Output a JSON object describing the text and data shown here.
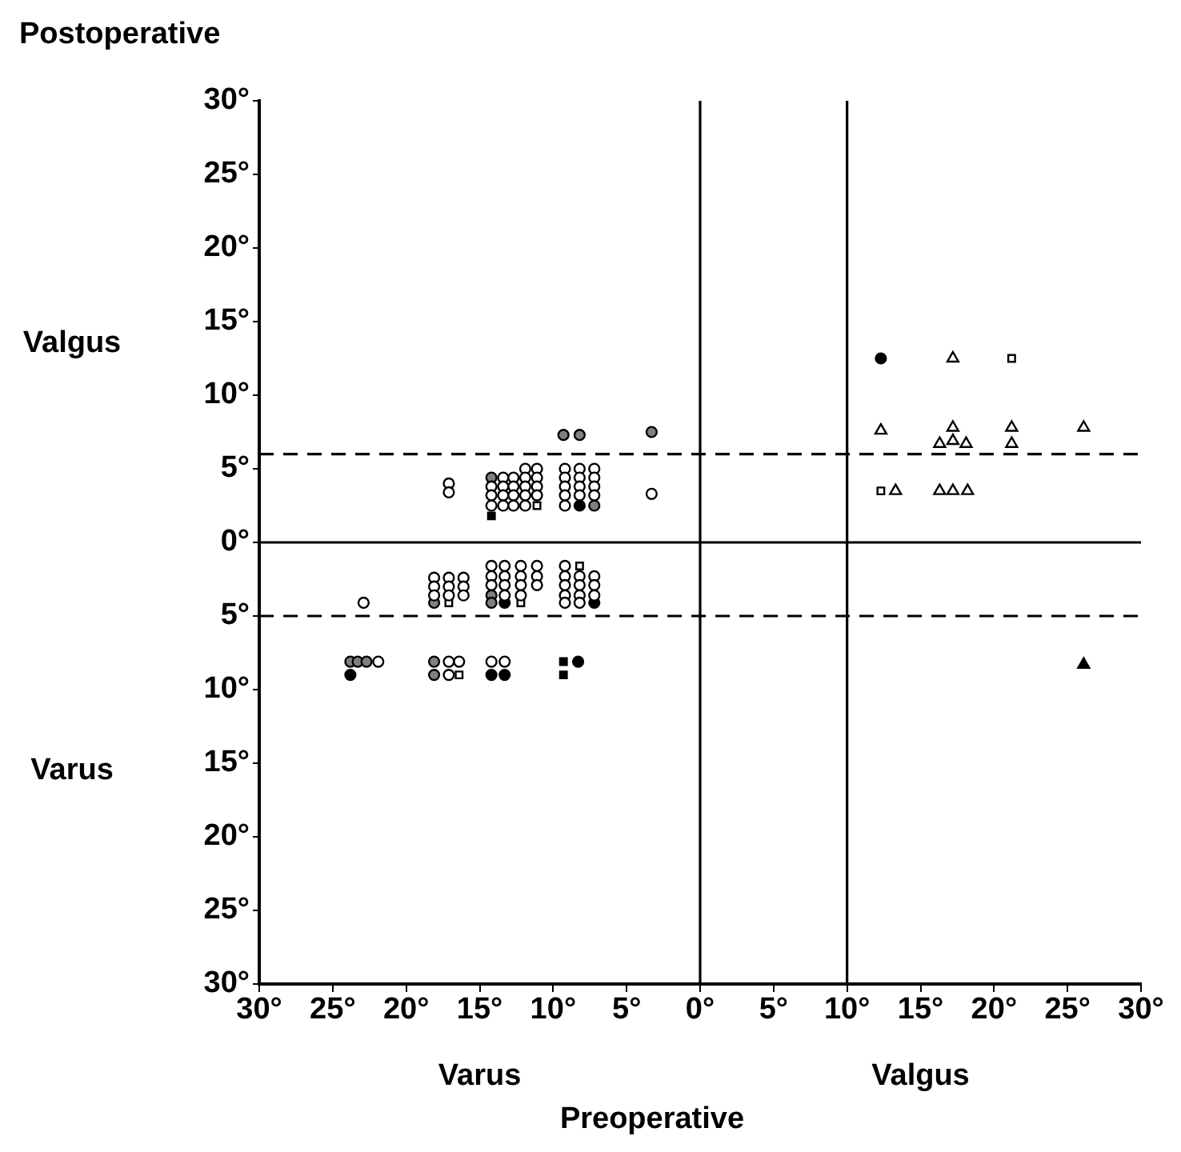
{
  "chart_data": {
    "type": "scatter",
    "xlabel": "Preoperative",
    "ylabel": "Postoperative",
    "grid": false,
    "legend": false,
    "annotations": [
      "Valgus",
      "Varus",
      "Varus",
      "Valgus"
    ],
    "xlim": [
      -30,
      30
    ],
    "ylim": [
      -30,
      30
    ],
    "xticks": [
      {
        "value": -30,
        "label": "30°"
      },
      {
        "value": -25,
        "label": "25°"
      },
      {
        "value": -20,
        "label": "20°"
      },
      {
        "value": -15,
        "label": "15°"
      },
      {
        "value": -10,
        "label": "10°"
      },
      {
        "value": -5,
        "label": "5°"
      },
      {
        "value": 0,
        "label": "0°"
      },
      {
        "value": 5,
        "label": "5°"
      },
      {
        "value": 10,
        "label": "10°"
      },
      {
        "value": 15,
        "label": "15°"
      },
      {
        "value": 20,
        "label": "20°"
      },
      {
        "value": 25,
        "label": "25°"
      },
      {
        "value": 30,
        "label": "30°"
      }
    ],
    "yticks": [
      {
        "value": -30,
        "label": "30°"
      },
      {
        "value": -25,
        "label": "25°"
      },
      {
        "value": -20,
        "label": "20°"
      },
      {
        "value": -15,
        "label": "15°"
      },
      {
        "value": -10,
        "label": "10°"
      },
      {
        "value": -5,
        "label": "5°"
      },
      {
        "value": 0,
        "label": "0°"
      },
      {
        "value": 5,
        "label": "5°"
      },
      {
        "value": 10,
        "label": "10°"
      },
      {
        "value": 15,
        "label": "15°"
      },
      {
        "value": 20,
        "label": "20°"
      },
      {
        "value": 25,
        "label": "25°"
      },
      {
        "value": 30,
        "label": "30°"
      }
    ],
    "ref_lines": [
      {
        "axis": "x",
        "value": 0,
        "line_style": "solid",
        "color": "#000000"
      },
      {
        "axis": "x",
        "value": 10,
        "line_style": "solid",
        "color": "#000000"
      },
      {
        "axis": "y",
        "value": 0,
        "line_style": "solid",
        "color": "#000000"
      },
      {
        "axis": "y",
        "value": 6,
        "line_style": "dashed",
        "color": "#000000"
      },
      {
        "axis": "y",
        "value": -5,
        "line_style": "dashed",
        "color": "#000000"
      }
    ],
    "series": [
      {
        "marker": "circle",
        "color": "#ffffff",
        "x": [
          -17.1,
          -17.1,
          -14.2,
          -14.2,
          -14.2,
          -13.4,
          -13.4,
          -13.4,
          -13.4,
          -12.7,
          -12.7,
          -12.7,
          -12.7,
          -11.9,
          -11.9,
          -11.9,
          -11.9,
          -11.9,
          -11.1,
          -11.1,
          -11.1,
          -11.1,
          -9.2,
          -9.2,
          -9.2,
          -9.2,
          -9.2,
          -8.2,
          -8.2,
          -8.2,
          -8.2,
          -7.2,
          -7.2,
          -7.2,
          -7.2,
          -3.3,
          -22.9,
          -18.1,
          -18.1,
          -18.1,
          -17.1,
          -17.1,
          -17.1,
          -16.1,
          -16.1,
          -16.1,
          -14.2,
          -14.2,
          -14.2,
          -13.3,
          -13.3,
          -13.3,
          -13.3,
          -12.2,
          -12.2,
          -12.2,
          -12.2,
          -11.1,
          -11.1,
          -11.1,
          -9.2,
          -9.2,
          -9.2,
          -9.2,
          -9.2,
          -8.2,
          -8.2,
          -8.2,
          -8.2,
          -7.2,
          -7.2,
          -7.2,
          -21.9,
          -17.1,
          -16.4,
          -17.1,
          -14.2,
          -13.3
        ],
        "values": [
          4.0,
          3.4,
          3.8,
          3.2,
          2.5,
          4.4,
          3.8,
          3.2,
          2.5,
          4.4,
          3.8,
          3.2,
          2.5,
          5.0,
          4.4,
          3.8,
          3.2,
          2.5,
          5.0,
          4.4,
          3.8,
          3.2,
          5.0,
          4.4,
          3.8,
          3.2,
          2.5,
          5.0,
          4.4,
          3.8,
          3.2,
          5.0,
          4.4,
          3.8,
          3.2,
          3.3,
          -4.1,
          -2.4,
          -3.0,
          -3.6,
          -2.4,
          -3.0,
          -3.6,
          -2.4,
          -3.0,
          -3.6,
          -1.6,
          -2.3,
          -2.9,
          -1.6,
          -2.3,
          -2.9,
          -3.6,
          -1.6,
          -2.3,
          -2.9,
          -3.6,
          -1.6,
          -2.3,
          -2.9,
          -1.6,
          -2.3,
          -2.9,
          -3.6,
          -4.1,
          -2.3,
          -2.9,
          -3.6,
          -4.1,
          -2.3,
          -2.9,
          -3.6,
          -8.1,
          -8.1,
          -8.1,
          -9.0,
          -8.1,
          -8.1
        ]
      },
      {
        "marker": "circle",
        "color": "#000000",
        "x": [
          -8.2,
          -13.3,
          -7.2,
          -23.8,
          -14.2,
          -13.3,
          -8.3,
          12.3
        ],
        "values": [
          2.5,
          -4.1,
          -4.1,
          -9.0,
          -9.0,
          -9.0,
          -8.1,
          12.5
        ]
      },
      {
        "marker": "circle",
        "color": "#808080",
        "x": [
          -9.3,
          -8.2,
          -3.3,
          -14.2,
          -7.2,
          -18.1,
          -14.2,
          -14.2,
          -23.8,
          -23.3,
          -22.7,
          -18.1,
          -18.1
        ],
        "values": [
          7.3,
          7.3,
          7.5,
          4.4,
          2.5,
          -4.1,
          -3.6,
          -4.1,
          -8.1,
          -8.1,
          -8.1,
          -8.1,
          -9.0
        ]
      },
      {
        "marker": "square",
        "color": "#ffffff",
        "x": [
          -11.1,
          -17.1,
          -12.2,
          -8.2,
          -16.4,
          21.2,
          12.3
        ],
        "values": [
          2.5,
          -4.1,
          -4.1,
          -1.6,
          -9.0,
          12.5,
          3.5
        ]
      },
      {
        "marker": "square",
        "color": "#000000",
        "x": [
          -14.2,
          -9.3,
          -9.3
        ],
        "values": [
          1.8,
          -8.1,
          -9.0
        ]
      },
      {
        "marker": "triangle",
        "color": "#ffffff",
        "x": [
          17.2,
          12.3,
          16.3,
          17.2,
          17.2,
          18.1,
          21.2,
          21.2,
          26.1,
          13.3,
          16.3,
          17.2,
          18.2
        ],
        "values": [
          12.5,
          7.6,
          6.7,
          7.8,
          6.9,
          6.7,
          7.8,
          6.7,
          7.8,
          3.5,
          3.5,
          3.5,
          3.5
        ]
      },
      {
        "marker": "triangle",
        "color": "#000000",
        "x": [
          26.1
        ],
        "values": [
          -8.3
        ]
      }
    ]
  }
}
